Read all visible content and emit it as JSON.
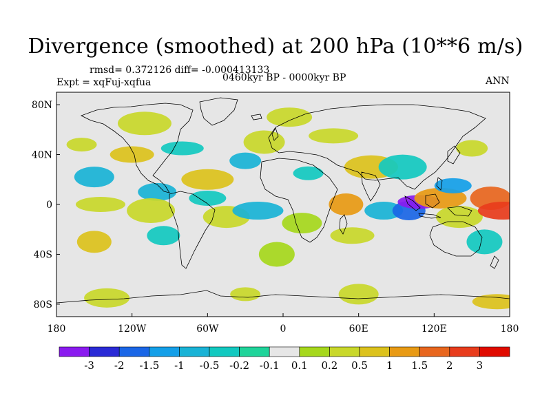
{
  "header": {
    "title": "Divergence (smoothed) at 200 hPa (10**6 m/s)",
    "stats": "rmsd= 0.372126 diff= -0.000413133",
    "experiment": "Expt = xqFuj-xqfua",
    "period": "0460kyr BP - 0000kyr BP",
    "season": "ANN"
  },
  "chart_data": {
    "type": "heatmap",
    "title": "Divergence (smoothed) at 200 hPa (10**6 m/s)",
    "x_range": [
      -180,
      180
    ],
    "y_range": [
      -90,
      90
    ],
    "x_ticks": [
      {
        "value": -180,
        "label": "180"
      },
      {
        "value": -120,
        "label": "120W"
      },
      {
        "value": -60,
        "label": "60W"
      },
      {
        "value": 0,
        "label": "0"
      },
      {
        "value": 60,
        "label": "60E"
      },
      {
        "value": 120,
        "label": "120E"
      },
      {
        "value": 180,
        "label": "180"
      }
    ],
    "y_ticks": [
      {
        "value": 80,
        "label": "80N"
      },
      {
        "value": 40,
        "label": "40N"
      },
      {
        "value": 0,
        "label": "0"
      },
      {
        "value": -40,
        "label": "40S"
      },
      {
        "value": -80,
        "label": "80S"
      }
    ],
    "colorbar": {
      "labels": [
        "-3",
        "-2",
        "-1.5",
        "-1",
        "-0.5",
        "-0.2",
        "-0.1",
        "0.1",
        "0.2",
        "0.5",
        "1",
        "1.5",
        "2",
        "3"
      ],
      "colors": [
        "#8a1aef",
        "#2a2ad6",
        "#1a66e6",
        "#149fe8",
        "#19b3d6",
        "#12c9c0",
        "#1fd49a",
        "#e6e6e6",
        "#a6d81c",
        "#c9d82a",
        "#dcc21c",
        "#e89a14",
        "#e8661e",
        "#e83c1c",
        "#e00a00"
      ]
    },
    "features": [
      {
        "lon": -160,
        "lat": 48,
        "value": 0.5
      },
      {
        "lon": -150,
        "lat": 22,
        "value": -0.5
      },
      {
        "lon": -145,
        "lat": 0,
        "value": 0.3
      },
      {
        "lon": -150,
        "lat": -30,
        "value": 1.0
      },
      {
        "lon": -120,
        "lat": 40,
        "value": 1.0
      },
      {
        "lon": -110,
        "lat": 65,
        "value": 0.3
      },
      {
        "lon": -100,
        "lat": 10,
        "value": -0.5
      },
      {
        "lon": -105,
        "lat": -5,
        "value": 0.5
      },
      {
        "lon": -95,
        "lat": -25,
        "value": -0.2
      },
      {
        "lon": -80,
        "lat": 45,
        "value": -0.3
      },
      {
        "lon": -60,
        "lat": 20,
        "value": 1.0
      },
      {
        "lon": -60,
        "lat": 5,
        "value": -0.2
      },
      {
        "lon": -45,
        "lat": -10,
        "value": 0.5
      },
      {
        "lon": -30,
        "lat": 35,
        "value": -0.5
      },
      {
        "lon": -15,
        "lat": 50,
        "value": 0.5
      },
      {
        "lon": -20,
        "lat": -5,
        "value": -0.5
      },
      {
        "lon": -5,
        "lat": -40,
        "value": 0.2
      },
      {
        "lon": 5,
        "lat": 70,
        "value": 0.3
      },
      {
        "lon": 20,
        "lat": 25,
        "value": -0.3
      },
      {
        "lon": 15,
        "lat": -15,
        "value": 0.2
      },
      {
        "lon": 40,
        "lat": 55,
        "value": 0.5
      },
      {
        "lon": 50,
        "lat": 0,
        "value": 1.5
      },
      {
        "lon": 55,
        "lat": -25,
        "value": 0.3
      },
      {
        "lon": 70,
        "lat": 30,
        "value": 1.0
      },
      {
        "lon": 80,
        "lat": -5,
        "value": -0.5
      },
      {
        "lon": 95,
        "lat": 30,
        "value": -0.3
      },
      {
        "lon": 100,
        "lat": -5,
        "value": -1.5
      },
      {
        "lon": 108,
        "lat": 2,
        "value": -3.0
      },
      {
        "lon": 125,
        "lat": 5,
        "value": 1.5
      },
      {
        "lon": 135,
        "lat": 15,
        "value": -1.0
      },
      {
        "lon": 140,
        "lat": -10,
        "value": 0.5
      },
      {
        "lon": 150,
        "lat": 45,
        "value": 0.5
      },
      {
        "lon": 165,
        "lat": 5,
        "value": 2.0
      },
      {
        "lon": 175,
        "lat": -5,
        "value": 3.0
      },
      {
        "lon": 160,
        "lat": -30,
        "value": -0.2
      },
      {
        "lon": -140,
        "lat": -75,
        "value": 0.3
      },
      {
        "lon": -30,
        "lat": -72,
        "value": 0.5
      },
      {
        "lon": 60,
        "lat": -72,
        "value": 0.3
      },
      {
        "lon": 170,
        "lat": -78,
        "value": 1.0
      }
    ]
  }
}
